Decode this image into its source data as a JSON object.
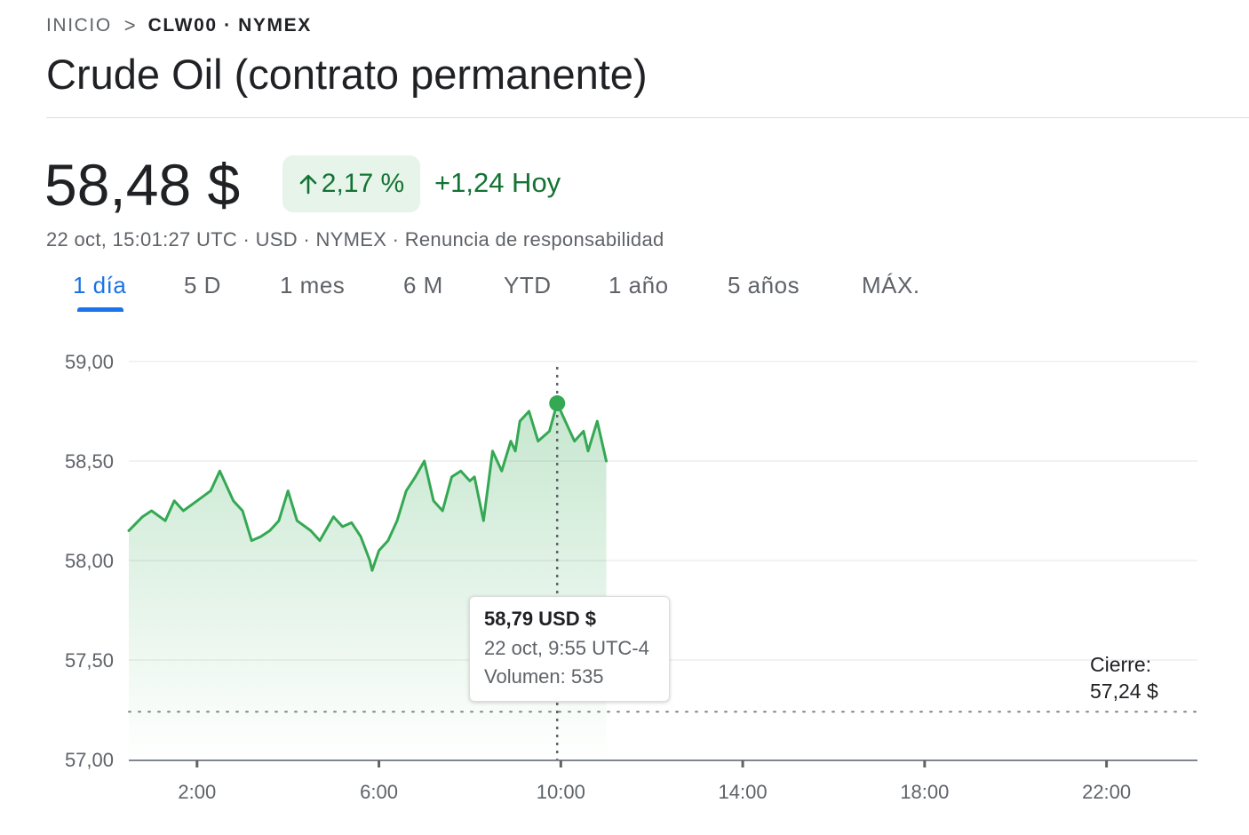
{
  "breadcrumb": {
    "home": "INICIO",
    "separator": ">",
    "current": "CLW00 · NYMEX"
  },
  "title": "Crude Oil (contrato permanente)",
  "quote": {
    "price": "58,48 $",
    "change_pct": "2,17 %",
    "change_today": "+1,24 Hoy",
    "direction_icon": "arrow-up-icon",
    "positive_color": "#137333",
    "positive_bg": "#e6f4ea"
  },
  "meta": {
    "timestamp": "22 oct, 15:01:27 UTC",
    "currency": "USD",
    "exchange": "NYMEX",
    "disclaimer": "Renuncia de responsabilidad",
    "separator": "·"
  },
  "tabs": [
    {
      "label": "1 día",
      "active": true
    },
    {
      "label": "5 D",
      "active": false
    },
    {
      "label": "1 mes",
      "active": false
    },
    {
      "label": "6 M",
      "active": false
    },
    {
      "label": "YTD",
      "active": false
    },
    {
      "label": "1 año",
      "active": false
    },
    {
      "label": "5 años",
      "active": false
    },
    {
      "label": "MÁX.",
      "active": false
    }
  ],
  "accent_color": "#1a73e8",
  "line_color": "#34a853",
  "tooltip": {
    "price": "58,79 USD $",
    "time": "22 oct, 9:55 UTC-4",
    "volume": "Volumen: 535"
  },
  "close": {
    "label": "Cierre:",
    "value": "57,24 $"
  },
  "chart_data": {
    "type": "line",
    "title": "",
    "xlabel": "",
    "ylabel": "",
    "ylim": [
      57.0,
      59.0
    ],
    "xlim": [
      0.5,
      24
    ],
    "y_ticks": [
      59.0,
      58.5,
      58.0,
      57.5,
      57.0
    ],
    "y_tick_labels": [
      "59,00",
      "58,50",
      "58,00",
      "57,50",
      "57,00"
    ],
    "x_ticks": [
      2,
      6,
      10,
      14,
      18,
      22
    ],
    "x_tick_labels": [
      "2:00",
      "6:00",
      "10:00",
      "14:00",
      "18:00",
      "22:00"
    ],
    "grid": true,
    "previous_close": 57.24,
    "highlight": {
      "x": 9.92,
      "y": 58.79
    },
    "series": [
      {
        "x": [
          0.5,
          0.8,
          1.0,
          1.3,
          1.5,
          1.7,
          2.0,
          2.3,
          2.5,
          2.8,
          3.0,
          3.2,
          3.4,
          3.6,
          3.8,
          4.0,
          4.2,
          4.5,
          4.7,
          4.9,
          5.0,
          5.2,
          5.4,
          5.6,
          5.8,
          5.85,
          6.0,
          6.2,
          6.4,
          6.6,
          6.8,
          7.0,
          7.2,
          7.4,
          7.6,
          7.8,
          8.0,
          8.1,
          8.3,
          8.5,
          8.7,
          8.9,
          9.0,
          9.1,
          9.3,
          9.5,
          9.6,
          9.75,
          9.92,
          10.1,
          10.3,
          10.5,
          10.6,
          10.8,
          11.0
        ],
        "y": [
          58.15,
          58.22,
          58.25,
          58.2,
          58.3,
          58.25,
          58.3,
          58.35,
          58.45,
          58.3,
          58.25,
          58.1,
          58.12,
          58.15,
          58.2,
          58.35,
          58.2,
          58.15,
          58.1,
          58.18,
          58.22,
          58.17,
          58.19,
          58.12,
          58.0,
          57.95,
          58.05,
          58.1,
          58.2,
          58.35,
          58.42,
          58.5,
          58.3,
          58.25,
          58.42,
          58.45,
          58.4,
          58.42,
          58.2,
          58.55,
          58.45,
          58.6,
          58.55,
          58.7,
          58.75,
          58.6,
          58.62,
          58.65,
          58.79,
          58.7,
          58.6,
          58.65,
          58.55,
          58.7,
          58.5
        ]
      }
    ]
  }
}
